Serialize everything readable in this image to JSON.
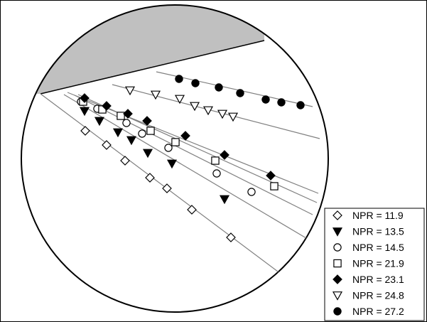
{
  "chart_data": {
    "type": "scatter",
    "title": "",
    "xlabel": "",
    "ylabel": "",
    "grid": false,
    "legend_position": "bottom-right",
    "series": [
      {
        "name": "NPR = 11.9",
        "marker": "diamond-open",
        "color": "#000000",
        "line": [
          [
            57,
            132
          ],
          [
            395,
            385
          ]
        ],
        "points": [
          [
            120,
            184
          ],
          [
            150,
            204
          ],
          [
            176,
            226
          ],
          [
            211,
            250
          ],
          [
            235,
            265
          ],
          [
            270,
            295
          ],
          [
            325,
            334
          ]
        ]
      },
      {
        "name": "NPR = 13.5",
        "marker": "triangle-down-filled",
        "color": "#000000",
        "line": [
          [
            90,
            133
          ],
          [
            431,
            335
          ]
        ],
        "points": [
          [
            119,
            156
          ],
          [
            140,
            170
          ],
          [
            166,
            186
          ],
          [
            185,
            197
          ],
          [
            208,
            215
          ],
          [
            242,
            230
          ],
          [
            316,
            280
          ]
        ]
      },
      {
        "name": "NPR = 14.5",
        "marker": "circle-open",
        "color": "#000000",
        "line": [
          [
            105,
            134
          ],
          [
            440,
            302
          ]
        ],
        "points": [
          [
            114,
            143
          ],
          [
            137,
            153
          ],
          [
            178,
            173
          ],
          [
            200,
            188
          ],
          [
            237,
            208
          ],
          [
            305,
            244
          ],
          [
            354,
            270
          ]
        ]
      },
      {
        "name": "NPR = 21.9",
        "marker": "square-open",
        "color": "#000000",
        "line": [
          [
            110,
            133
          ],
          [
            446,
            285
          ]
        ],
        "points": [
          [
            117,
            143
          ],
          [
            144,
            154
          ],
          [
            170,
            163
          ],
          [
            212,
            184
          ],
          [
            247,
            200
          ],
          [
            303,
            226
          ],
          [
            386,
            262
          ]
        ]
      },
      {
        "name": "NPR = 23.1",
        "marker": "diamond-filled",
        "color": "#000000",
        "line": [
          [
            95,
            130
          ],
          [
            448,
            272
          ]
        ],
        "points": [
          [
            119,
            138
          ],
          [
            150,
            149
          ],
          [
            180,
            160
          ],
          [
            207,
            170
          ],
          [
            261,
            191
          ],
          [
            316,
            218
          ],
          [
            381,
            247
          ]
        ]
      },
      {
        "name": "NPR = 24.8",
        "marker": "triangle-down-open",
        "color": "#000000",
        "line": [
          [
            158,
            119
          ],
          [
            450,
            195
          ]
        ],
        "points": [
          [
            183,
            127
          ],
          [
            219,
            133
          ],
          [
            253,
            139
          ],
          [
            274,
            149
          ],
          [
            293,
            155
          ],
          [
            313,
            160
          ],
          [
            328,
            164
          ]
        ]
      },
      {
        "name": "NPR = 27.2",
        "marker": "circle-filled",
        "color": "#000000",
        "line": [
          [
            220,
            101
          ],
          [
            440,
            150
          ]
        ],
        "points": [
          [
            252,
            111
          ],
          [
            275,
            117
          ],
          [
            308,
            123
          ],
          [
            338,
            131
          ],
          [
            374,
            140
          ],
          [
            396,
            144
          ],
          [
            423,
            148
          ]
        ]
      }
    ]
  },
  "legend": {
    "entries": [
      {
        "label": "NPR = 11.9",
        "marker": "diamond-open"
      },
      {
        "label": "NPR = 13.5",
        "marker": "triangle-down-filled"
      },
      {
        "label": "NPR = 14.5",
        "marker": "circle-open"
      },
      {
        "label": "NPR = 21.9",
        "marker": "square-open"
      },
      {
        "label": "NPR = 23.1",
        "marker": "diamond-filled"
      },
      {
        "label": "NPR = 24.8",
        "marker": "triangle-down-open"
      },
      {
        "label": "NPR = 27.2",
        "marker": "circle-filled"
      }
    ]
  },
  "colors": {
    "shaded_region": "#c0c0c0",
    "fit_line": "#808080",
    "outline": "#000000"
  }
}
